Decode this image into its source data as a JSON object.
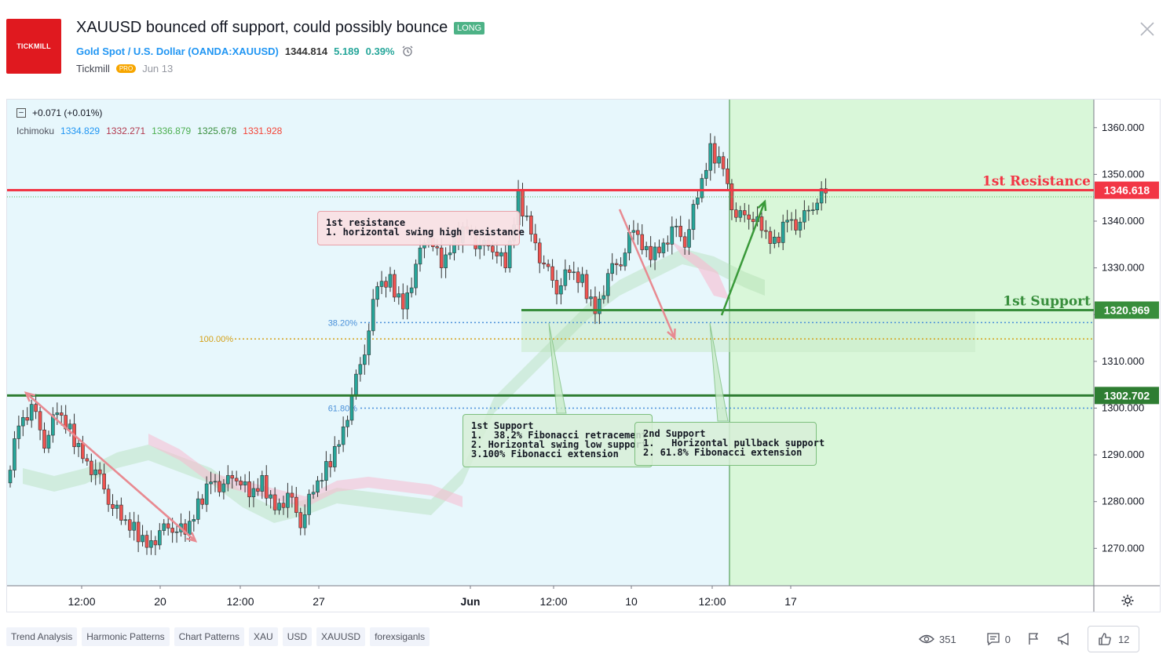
{
  "header": {
    "logo_text": "TICKMILL",
    "title": "XAUUSD bounced off support, could possibly bounce",
    "direction_badge": "LONG",
    "symbol_name": "Gold Spot / U.S. Dollar",
    "symbol_exchange": "(OANDA:XAUUSD)",
    "last_price": "1344.814",
    "change": "5.189",
    "change_pct": "0.39%",
    "author": "Tickmill",
    "author_badge": "PRO",
    "publish_date": "Jun 13"
  },
  "legend": {
    "change_text": "+0.071 (+0.01%)",
    "indicator_name": "Ichimoku",
    "values": [
      "1334.829",
      "1332.271",
      "1336.879",
      "1325.678",
      "1331.928"
    ]
  },
  "chart_data": {
    "type": "candlestick",
    "symbol": "XAUUSD",
    "ylim": [
      1262,
      1366
    ],
    "y_ticks": [
      "1360.000",
      "1350.000",
      "1340.000",
      "1330.000",
      "1320.000",
      "1310.000",
      "1300.000",
      "1290.000",
      "1280.000",
      "1270.000"
    ],
    "x_ticks": [
      "12:00",
      "20",
      "12:00",
      "27",
      "Jun",
      "12:00",
      "10",
      "12:00",
      "17"
    ],
    "price_path": [
      1284,
      1297,
      1300,
      1293,
      1299,
      1295,
      1290,
      1286,
      1281,
      1276,
      1274,
      1271,
      1273,
      1275,
      1273,
      1279,
      1285,
      1283,
      1286,
      1281,
      1284,
      1279,
      1281,
      1276,
      1282,
      1287,
      1293,
      1302,
      1313,
      1326,
      1327,
      1322,
      1330,
      1338,
      1330,
      1336,
      1339,
      1334,
      1335,
      1330,
      1345,
      1338,
      1330,
      1326,
      1329,
      1327,
      1321,
      1328,
      1332,
      1338,
      1333,
      1334,
      1338,
      1336,
      1345,
      1355,
      1352,
      1340,
      1342,
      1338,
      1335,
      1341,
      1339,
      1344,
      1346
    ],
    "horizontal_levels": [
      {
        "label": "1st Resistance",
        "price": 1346.618,
        "price_label": "1346.618",
        "color": "#f23645"
      },
      {
        "label": "1st Support",
        "price": 1320.969,
        "price_label": "1320.969",
        "color": "#388e3c"
      },
      {
        "label": "",
        "price": 1302.702,
        "price_label": "1302.702",
        "color": "#2e7d32"
      }
    ],
    "fib_levels": [
      {
        "label": "38.20%",
        "price": 1318.3,
        "color": "#4a90d9"
      },
      {
        "label": "100.00%",
        "price": 1314.8,
        "color": "#d4a017"
      },
      {
        "label": "61.80%",
        "price": 1300.0,
        "color": "#4a90d9"
      }
    ],
    "projection_color": "#d9f7d9"
  },
  "notes": {
    "resistance": "1st resistance\n1. horizontal swing high resistance",
    "support1": "1st Support\n1.  38.2% Fibonacci retracement\n2. Horizontal swing low support\n3.100% Fibonacci extension",
    "support2": "2nd Support\n1.   Horizontal pullback support\n2. 61.8% Fibonacci extension"
  },
  "tags": [
    "Trend Analysis",
    "Harmonic Patterns",
    "Chart Patterns",
    "XAU",
    "USD",
    "XAUUSD",
    "forexsiganls"
  ],
  "stats": {
    "views": "351",
    "comments": "0",
    "likes": "12"
  },
  "icons": [
    "alarm-clock-icon",
    "close-icon",
    "collapse-icon",
    "settings-icon",
    "eye-icon",
    "comment-icon",
    "flag-icon",
    "megaphone-icon",
    "thumbs-up-icon"
  ]
}
